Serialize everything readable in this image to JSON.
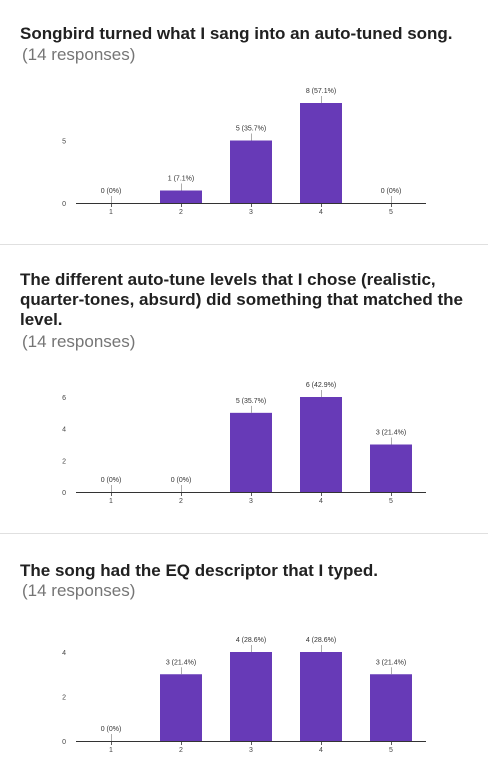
{
  "colors": {
    "bar": "#673ab7",
    "axis": "#333333",
    "divider": "#e0e0e0",
    "text": "#212121",
    "muted": "#757575"
  },
  "chart_data": [
    {
      "type": "bar",
      "title": "Songbird turned what I sang into an auto-tuned song.",
      "subtitle": "(14 responses)",
      "categories": [
        "1",
        "2",
        "3",
        "4",
        "5"
      ],
      "values": [
        0,
        1,
        5,
        8,
        0
      ],
      "data_labels": [
        "0 (0%)",
        "1 (7.1%)",
        "5 (35.7%)",
        "8 (57.1%)",
        "0 (0%)"
      ],
      "yticks": [
        0,
        5
      ],
      "ylim": [
        0,
        8
      ]
    },
    {
      "type": "bar",
      "title": "The different auto-tune levels that I chose (realistic, quarter-tones, absurd) did something that matched the level.",
      "subtitle": "(14 responses)",
      "categories": [
        "1",
        "2",
        "3",
        "4",
        "5"
      ],
      "values": [
        0,
        0,
        5,
        6,
        3
      ],
      "data_labels": [
        "0 (0%)",
        "0 (0%)",
        "5 (35.7%)",
        "6 (42.9%)",
        "3 (21.4%)"
      ],
      "yticks": [
        0,
        2,
        4,
        6
      ],
      "ylim": [
        0,
        6
      ]
    },
    {
      "type": "bar",
      "title": "The song had the EQ descriptor that I typed.",
      "subtitle": "(14 responses)",
      "categories": [
        "1",
        "2",
        "3",
        "4",
        "5"
      ],
      "values": [
        0,
        3,
        4,
        4,
        3
      ],
      "data_labels": [
        "0 (0%)",
        "3 (21.4%)",
        "4 (28.6%)",
        "4 (28.6%)",
        "3 (21.4%)"
      ],
      "yticks": [
        0,
        2,
        4
      ],
      "ylim": [
        0,
        4
      ]
    }
  ]
}
